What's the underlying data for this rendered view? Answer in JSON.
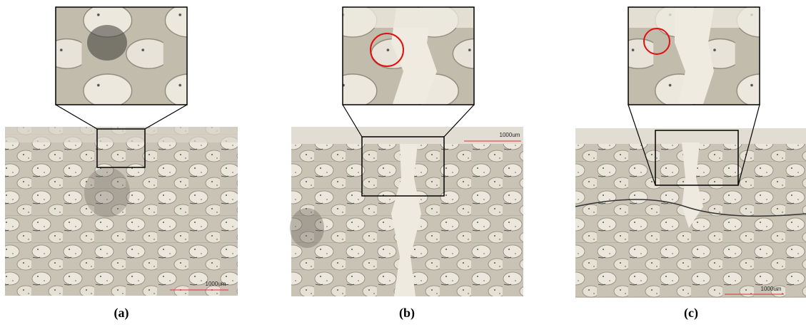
{
  "panels": [
    {
      "caption": "(a)",
      "scale_label": "1000um"
    },
    {
      "caption": "(b)",
      "scale_label": "1000um"
    },
    {
      "caption": "(c)",
      "scale_label": "1000um"
    }
  ]
}
